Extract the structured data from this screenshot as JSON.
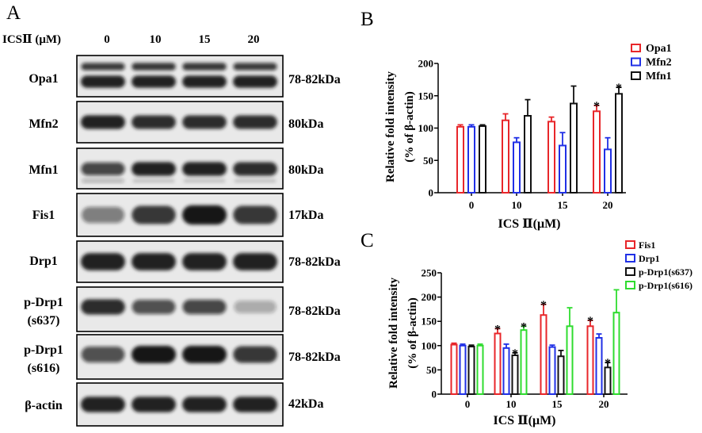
{
  "panel_labels": {
    "a": "A",
    "b": "B",
    "c": "C"
  },
  "blot": {
    "header_label": "ICSⅡ (μM)",
    "lanes": [
      "0",
      "10",
      "15",
      "20"
    ],
    "rows": [
      {
        "label": [
          "Opa1"
        ],
        "size": "78-82kDa",
        "bands": [
          [
            0.8,
            0.85,
            0.85,
            0.8
          ],
          [
            0.95,
            0.95,
            0.95,
            0.95
          ]
        ]
      },
      {
        "label": [
          "Mfn2"
        ],
        "size": "80kDa",
        "bands": [
          [
            0.95,
            0.9,
            0.9,
            0.9
          ]
        ]
      },
      {
        "label": [
          "Mfn1"
        ],
        "size": "80kDa",
        "bands": [
          [
            0.75,
            0.95,
            0.95,
            0.9
          ],
          [
            0.3,
            0.2,
            0.2,
            0.2
          ]
        ]
      },
      {
        "label": [
          "Fis1"
        ],
        "size": "17kDa",
        "bands": [
          [
            0.5,
            0.85,
            1.0,
            0.85
          ]
        ]
      },
      {
        "label": [
          "Drp1"
        ],
        "size": "78-82kDa",
        "bands": [
          [
            0.95,
            0.95,
            0.95,
            0.95
          ]
        ]
      },
      {
        "label": [
          "p-Drp1",
          "(s637)"
        ],
        "size": "78-82kDa",
        "bands": [
          [
            0.9,
            0.7,
            0.75,
            0.3
          ]
        ]
      },
      {
        "label": [
          "p-Drp1",
          "(s616)"
        ],
        "size": "78-82kDa",
        "bands": [
          [
            0.7,
            1.0,
            1.0,
            0.85
          ]
        ]
      },
      {
        "label": [
          "β-actin"
        ],
        "size": "42kDa",
        "bands": [
          [
            0.95,
            0.95,
            0.95,
            0.95
          ]
        ]
      }
    ]
  },
  "chart_data": [
    {
      "type": "bar",
      "categories": [
        "0",
        "10",
        "15",
        "20"
      ],
      "series": [
        {
          "name": "Opa1",
          "color": "#e8262a",
          "values": [
            102,
            112,
            110,
            126
          ],
          "errors": [
            3,
            10,
            7,
            9
          ],
          "significant": [
            false,
            false,
            false,
            true
          ]
        },
        {
          "name": "Mfn2",
          "color": "#2030e6",
          "values": [
            102,
            78,
            73,
            67
          ],
          "errors": [
            3,
            7,
            20,
            18
          ],
          "significant": [
            false,
            false,
            false,
            false
          ]
        },
        {
          "name": "Mfn1",
          "color": "#111111",
          "values": [
            103,
            119,
            138,
            153
          ],
          "errors": [
            2,
            25,
            27,
            10
          ],
          "significant": [
            false,
            false,
            false,
            true
          ]
        }
      ],
      "xlabel": "ICS Ⅱ(μM)",
      "ylabel": [
        "Relative fold intensity",
        "(% of β-actin)"
      ],
      "yticks": [
        "0",
        "50",
        "100",
        "150",
        "200"
      ],
      "ylim": [
        0,
        200
      ],
      "significance_marker": "*",
      "legend": "top-right",
      "grid": false
    },
    {
      "type": "bar",
      "categories": [
        "0",
        "10",
        "15",
        "20"
      ],
      "series": [
        {
          "name": "Fis1",
          "color": "#e8262a",
          "values": [
            102,
            125,
            163,
            140
          ],
          "errors": [
            3,
            10,
            22,
            12
          ],
          "significant": [
            false,
            true,
            true,
            true
          ]
        },
        {
          "name": "Drp1",
          "color": "#2030e6",
          "values": [
            100,
            95,
            97,
            116
          ],
          "errors": [
            3,
            8,
            4,
            8
          ],
          "significant": [
            false,
            false,
            false,
            false
          ]
        },
        {
          "name": "p-Drp1(s637)",
          "color": "#111111",
          "values": [
            98,
            80,
            78,
            55
          ],
          "errors": [
            3,
            5,
            12,
            10
          ],
          "significant": [
            false,
            true,
            false,
            true
          ]
        },
        {
          "name": "p-Drp1(s616)",
          "color": "#2fdc2f",
          "values": [
            100,
            132,
            140,
            168
          ],
          "errors": [
            3,
            8,
            38,
            47
          ],
          "significant": [
            false,
            true,
            false,
            false
          ]
        }
      ],
      "xlabel": "ICS Ⅱ(μM)",
      "ylabel": [
        "Relative fold intensity",
        "(% of β-actin)"
      ],
      "yticks": [
        "0",
        "50",
        "100",
        "150",
        "200",
        "250"
      ],
      "ylim": [
        0,
        250
      ],
      "significance_marker": "*",
      "legend": "top-right",
      "grid": false
    }
  ]
}
